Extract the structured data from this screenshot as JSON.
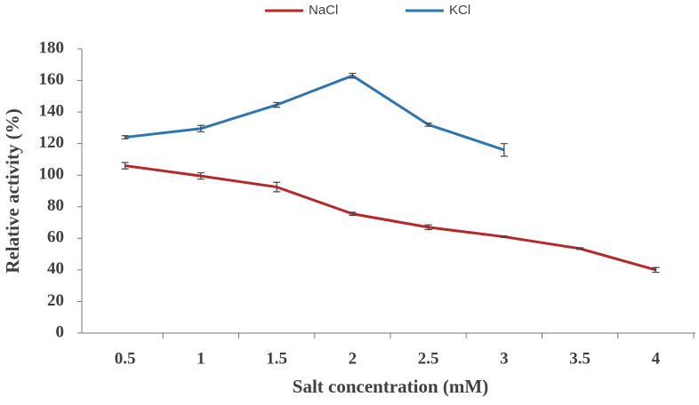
{
  "chart_data": {
    "type": "line",
    "x_label": "Salt concentration (mM)",
    "y_label": "Relative activity (%)",
    "categories": [
      "0.5",
      "1",
      "1.5",
      "2",
      "2.5",
      "3",
      "3.5",
      "4"
    ],
    "series": [
      {
        "name": "NaCl",
        "color": "#b8282a",
        "values": [
          106,
          99.5,
          92.5,
          75.5,
          67,
          61,
          53.5,
          40
        ],
        "errors": [
          2,
          2,
          3,
          1,
          1.5,
          0.5,
          0.5,
          1.5
        ]
      },
      {
        "name": "KCl",
        "color": "#2e75b6",
        "values": [
          124,
          129.5,
          144.5,
          163,
          132,
          116,
          null,
          null
        ],
        "errors": [
          1,
          2,
          1.5,
          1.5,
          1,
          4,
          null,
          null
        ]
      }
    ],
    "ylim": [
      0,
      180
    ],
    "yticks": [
      0,
      20,
      40,
      60,
      80,
      100,
      120,
      140,
      160,
      180
    ],
    "grid": false,
    "legend": "top"
  }
}
